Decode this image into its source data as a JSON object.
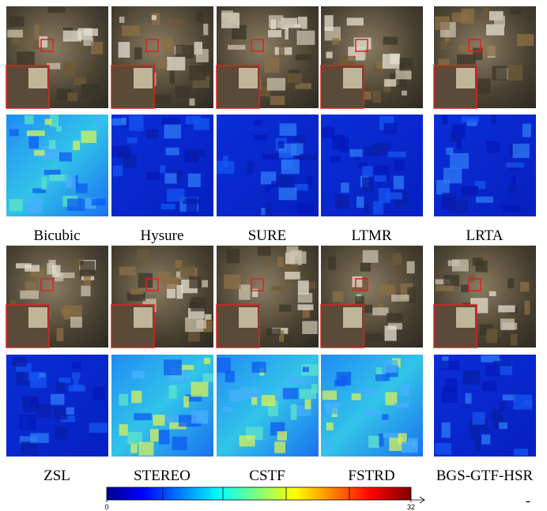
{
  "figure": {
    "label_rows": [
      [
        "Bicubic",
        "Hysure",
        "SURE",
        "LTMR",
        "LRTA"
      ],
      [
        "ZSL",
        "STEREO",
        "CSTF",
        "FSTRD",
        "BGS-GTF-HSR"
      ]
    ],
    "colorbar": {
      "ticks": [
        0,
        32
      ]
    },
    "footnote": "-"
  }
}
